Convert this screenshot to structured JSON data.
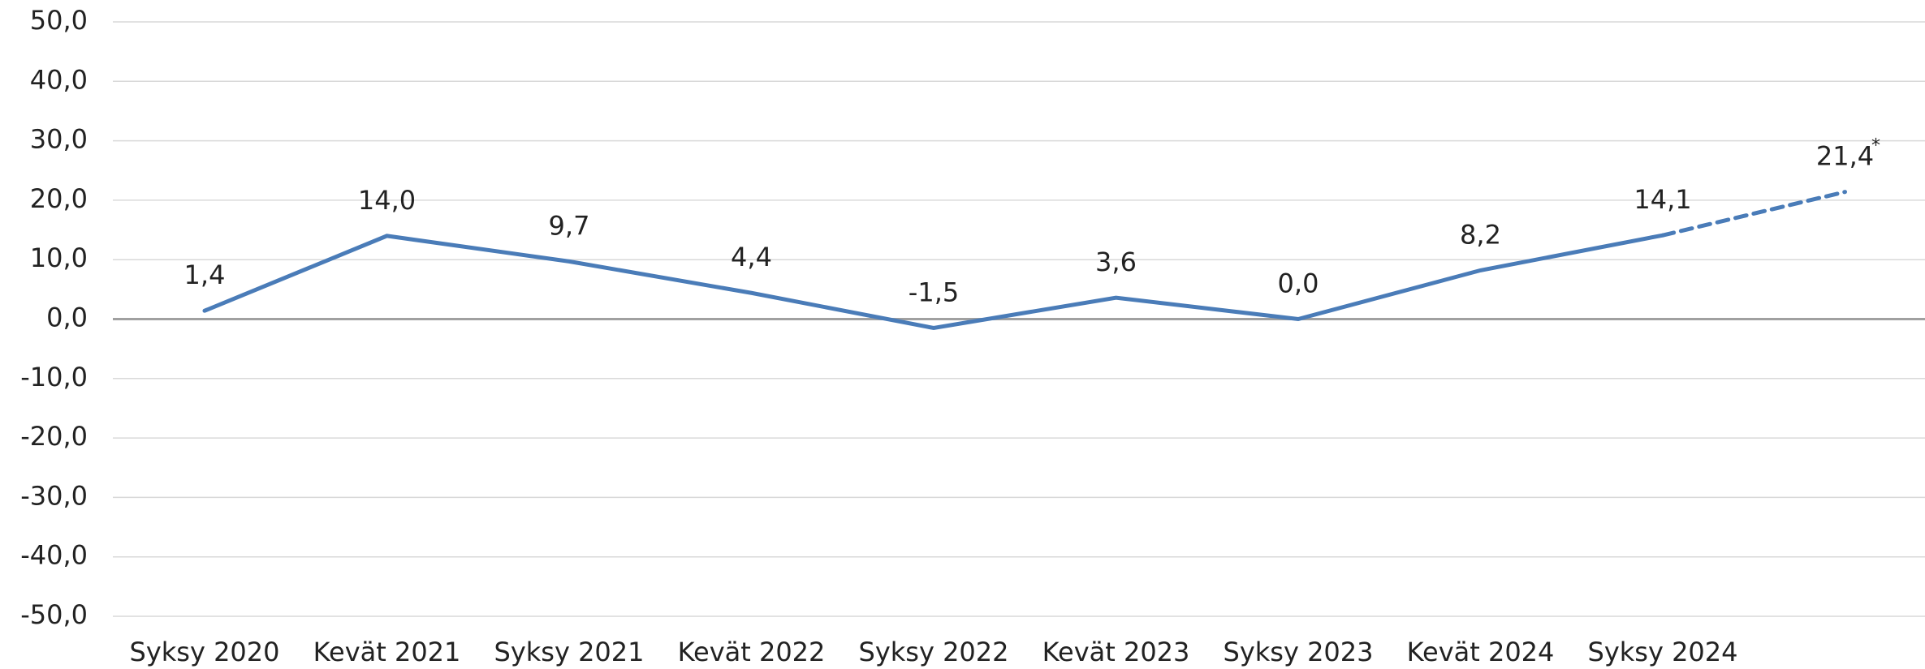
{
  "chart_data": {
    "type": "line",
    "categories": [
      "Syksy 2020",
      "Kevät 2021",
      "Syksy 2021",
      "Kevät 2022",
      "Syksy 2022",
      "Kevät 2023",
      "Syksy 2023",
      "Kevät 2024",
      "Syksy 2024",
      null
    ],
    "series": [
      {
        "name": null,
        "color": "#4a7cb8",
        "values": [
          1.4,
          14.0,
          9.7,
          4.4,
          -1.5,
          3.6,
          0.0,
          8.2,
          14.1,
          21.4
        ],
        "value_labels": [
          "1,4",
          "14,0",
          "9,7",
          "4,4",
          "-1,5",
          "3,6",
          "0,0",
          "8,2",
          "14,1",
          "21,4"
        ],
        "dashed_last_segment": true
      }
    ],
    "annotations": [
      {
        "text": "*",
        "point": 9
      }
    ],
    "ylim": [
      -50,
      50
    ],
    "yticks": [
      {
        "value": -50,
        "label": "-50,0"
      },
      {
        "value": -40,
        "label": "-40,0"
      },
      {
        "value": -30,
        "label": "-30,0"
      },
      {
        "value": -20,
        "label": "-20,0"
      },
      {
        "value": -10,
        "label": "-10,0"
      },
      {
        "value": 0,
        "label": "0,0"
      },
      {
        "value": 10,
        "label": "10,0"
      },
      {
        "value": 20,
        "label": "20,0"
      },
      {
        "value": 30,
        "label": "30,0"
      },
      {
        "value": 40,
        "label": "40,0"
      },
      {
        "value": 50,
        "label": "50,0"
      }
    ],
    "grid": true
  }
}
